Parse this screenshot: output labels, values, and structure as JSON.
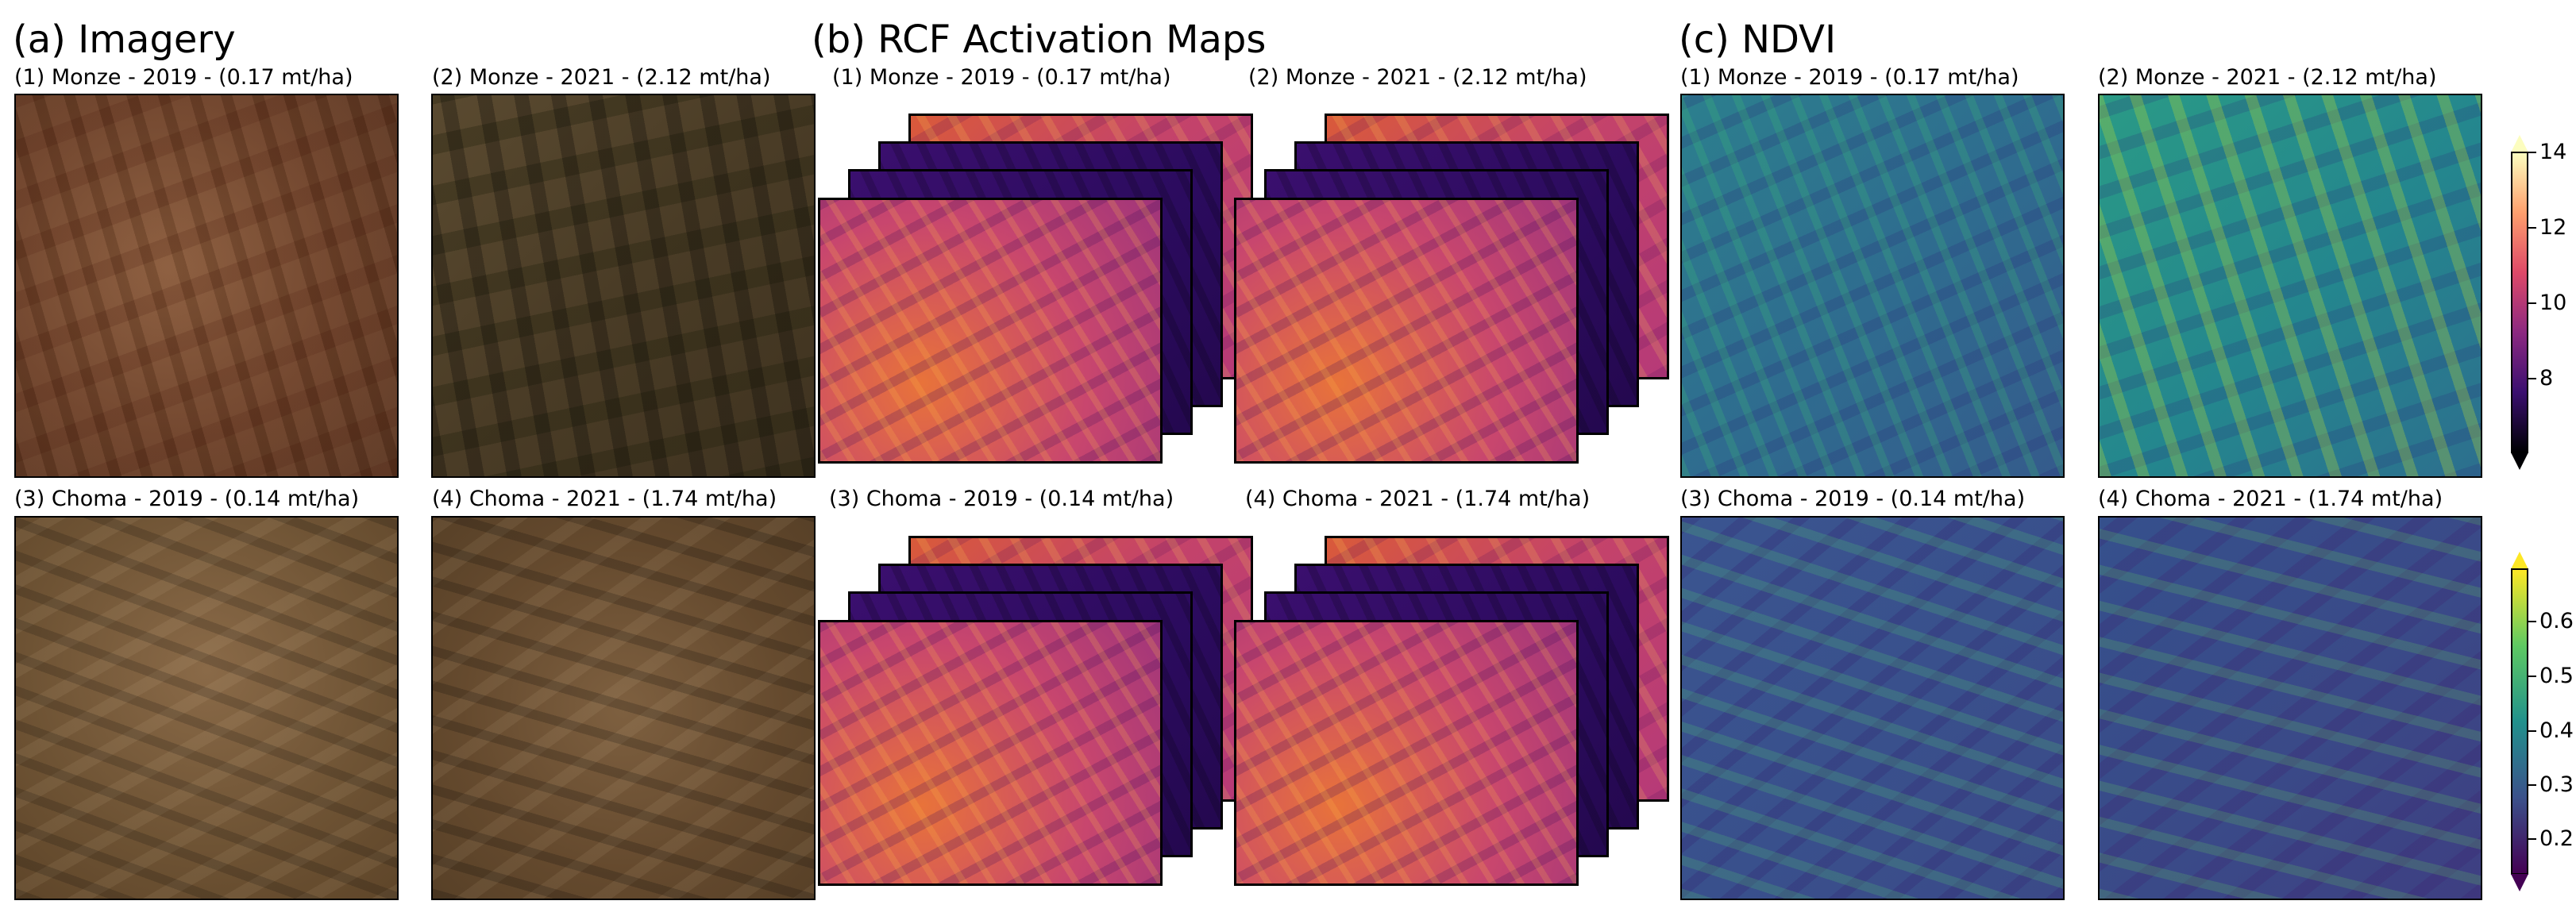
{
  "sections": {
    "imagery": "(a) Imagery",
    "rcf": "(b) RCF Activation Maps",
    "ndvi": "(c) NDVI"
  },
  "captions": {
    "p1": "(1) Monze - 2019 - (0.17 mt/ha)",
    "p2": "(2) Monze - 2021 - (2.12 mt/ha)",
    "p3": "(3) Choma - 2019 - (0.14 mt/ha)",
    "p4": "(4) Choma - 2021 - (1.74 mt/ha)"
  },
  "colorbars": {
    "rcf": {
      "cmap": "inferno",
      "ticks": [
        "14",
        "12",
        "10",
        "8"
      ]
    },
    "ndvi": {
      "cmap": "viridis",
      "ticks": [
        "0.6",
        "0.5",
        "0.4",
        "0.3",
        "0.2"
      ]
    }
  },
  "colors": {
    "frame": "#000000",
    "background": "#ffffff"
  }
}
